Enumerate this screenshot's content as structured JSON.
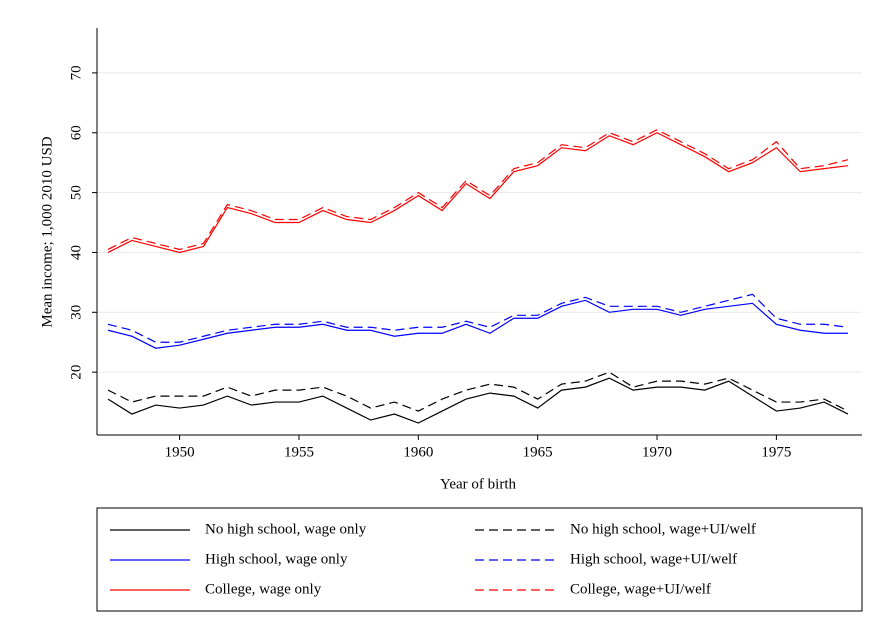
{
  "chart_data": {
    "type": "line",
    "x_label": "Year of birth",
    "y_label": "Mean income; 1,000 2010 USD",
    "x": [
      1947,
      1948,
      1949,
      1950,
      1951,
      1952,
      1953,
      1954,
      1955,
      1956,
      1957,
      1958,
      1959,
      1960,
      1961,
      1962,
      1963,
      1964,
      1965,
      1966,
      1967,
      1968,
      1969,
      1970,
      1971,
      1972,
      1973,
      1974,
      1975,
      1976,
      1977,
      1978
    ],
    "xlim": [
      1947,
      1978
    ],
    "xticks": [
      1950,
      1955,
      1960,
      1965,
      1970,
      1975
    ],
    "ylim": [
      9.5,
      77.5
    ],
    "yticks": [
      20,
      30,
      40,
      50,
      60,
      70
    ],
    "grid": true,
    "legend": "bottom",
    "series": [
      {
        "name": "No high school, wage only",
        "color": "#000000",
        "dashed": false,
        "values": [
          15.5,
          13,
          14.5,
          14,
          14.5,
          16,
          14.5,
          15,
          15,
          16,
          14,
          12,
          13,
          11.5,
          13.5,
          15.5,
          16.5,
          16,
          14,
          17,
          17.5,
          19,
          17,
          17.5,
          17.5,
          17,
          18.5,
          16,
          13.5,
          14,
          15,
          13
        ]
      },
      {
        "name": "No high school, wage+UI/welf",
        "color": "#000000",
        "dashed": true,
        "values": [
          17,
          15,
          16,
          16,
          16,
          17.5,
          16,
          17,
          17,
          17.5,
          16,
          14,
          15,
          13.5,
          15.5,
          17,
          18,
          17.5,
          15.5,
          18,
          18.5,
          20,
          17.5,
          18.5,
          18.5,
          18,
          19,
          17,
          15,
          15,
          15.5,
          13.5
        ]
      },
      {
        "name": "High school, wage only",
        "color": "#0000ff",
        "dashed": false,
        "values": [
          27,
          26,
          24,
          24.5,
          25.5,
          26.5,
          27,
          27.5,
          27.5,
          28,
          27,
          27,
          26,
          26.5,
          26.5,
          28,
          26.5,
          29,
          29,
          31,
          32,
          30,
          30.5,
          30.5,
          29.5,
          30.5,
          31,
          31.5,
          28,
          27,
          26.5,
          26.5
        ]
      },
      {
        "name": "High school, wage+UI/welf",
        "color": "#0000ff",
        "dashed": true,
        "values": [
          28,
          27,
          25,
          25,
          26,
          27,
          27.5,
          28,
          28,
          28.5,
          27.5,
          27.5,
          27,
          27.5,
          27.5,
          28.5,
          27.5,
          29.5,
          29.5,
          31.5,
          32.5,
          31,
          31,
          31,
          30,
          31,
          32,
          33,
          29,
          28,
          28,
          27.5
        ]
      },
      {
        "name": "College, wage only",
        "color": "#ff0000",
        "dashed": false,
        "values": [
          40,
          42,
          41,
          40,
          41,
          47.5,
          46.5,
          45,
          45,
          47,
          45.5,
          45,
          47,
          49.5,
          47,
          51.5,
          49,
          53.5,
          54.5,
          57.5,
          57,
          59.5,
          58,
          60,
          58,
          56,
          53.5,
          55,
          57.5,
          53.5,
          54,
          54.5
        ]
      },
      {
        "name": "College, wage+UI/welf",
        "color": "#ff0000",
        "dashed": true,
        "values": [
          40.5,
          42.5,
          41.5,
          40.5,
          41.5,
          48,
          47,
          45.5,
          45.5,
          47.5,
          46,
          45.5,
          47.5,
          50,
          47.5,
          52,
          49.5,
          54,
          55,
          58,
          57.5,
          60,
          58.5,
          60.5,
          58.5,
          56.5,
          54,
          55.5,
          58.5,
          54,
          54.5,
          55.5
        ]
      }
    ]
  }
}
